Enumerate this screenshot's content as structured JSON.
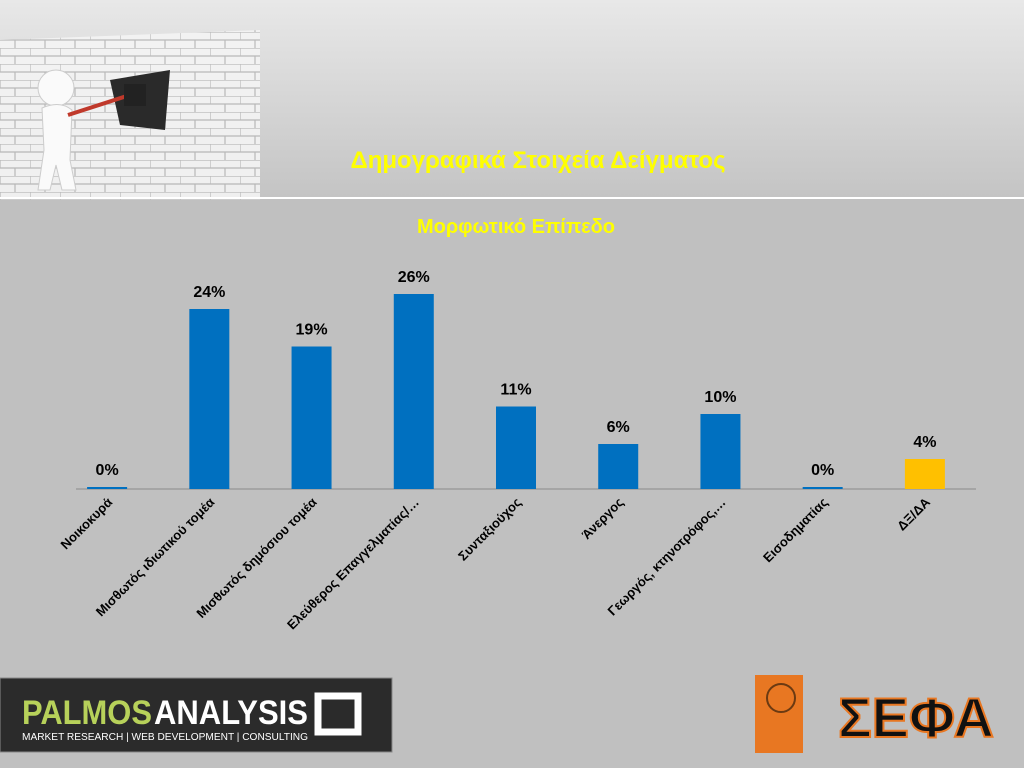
{
  "slide_title": "Δημογραφικά Στοιχεία Δείγματος",
  "chart_data": {
    "type": "bar",
    "title": "Μορφωτικό Επίπεδο",
    "categories": [
      "Νοικοκυρά",
      "Μισθωτός ιδιωτικού τομέα",
      "Μισθωτός δημόσιου τομέα",
      "Ελεύθερος Επαγγελματίας/…",
      "Συνταξιούχος",
      "Άνεργος",
      "Γεωργός, κτηνοτρόφος,…",
      "Εισοδηματίας",
      "ΔΞ/ΔΑ"
    ],
    "values": [
      0,
      24,
      19,
      26,
      11,
      6,
      10,
      0,
      4
    ],
    "value_labels": [
      "0%",
      "24%",
      "19%",
      "26%",
      "11%",
      "6%",
      "10%",
      "0%",
      "4%"
    ],
    "colors": [
      "#0070c0",
      "#0070c0",
      "#0070c0",
      "#0070c0",
      "#0070c0",
      "#0070c0",
      "#0070c0",
      "#0070c0",
      "#ffc000"
    ]
  },
  "logos": {
    "palmos_a": "PALMOS",
    "palmos_b": "ANALYSIS",
    "palmos_tagline": "MARKET RESEARCH | WEB DEVELOPMENT | CONSULTING",
    "sefa": "ΣΕΦΑ"
  }
}
